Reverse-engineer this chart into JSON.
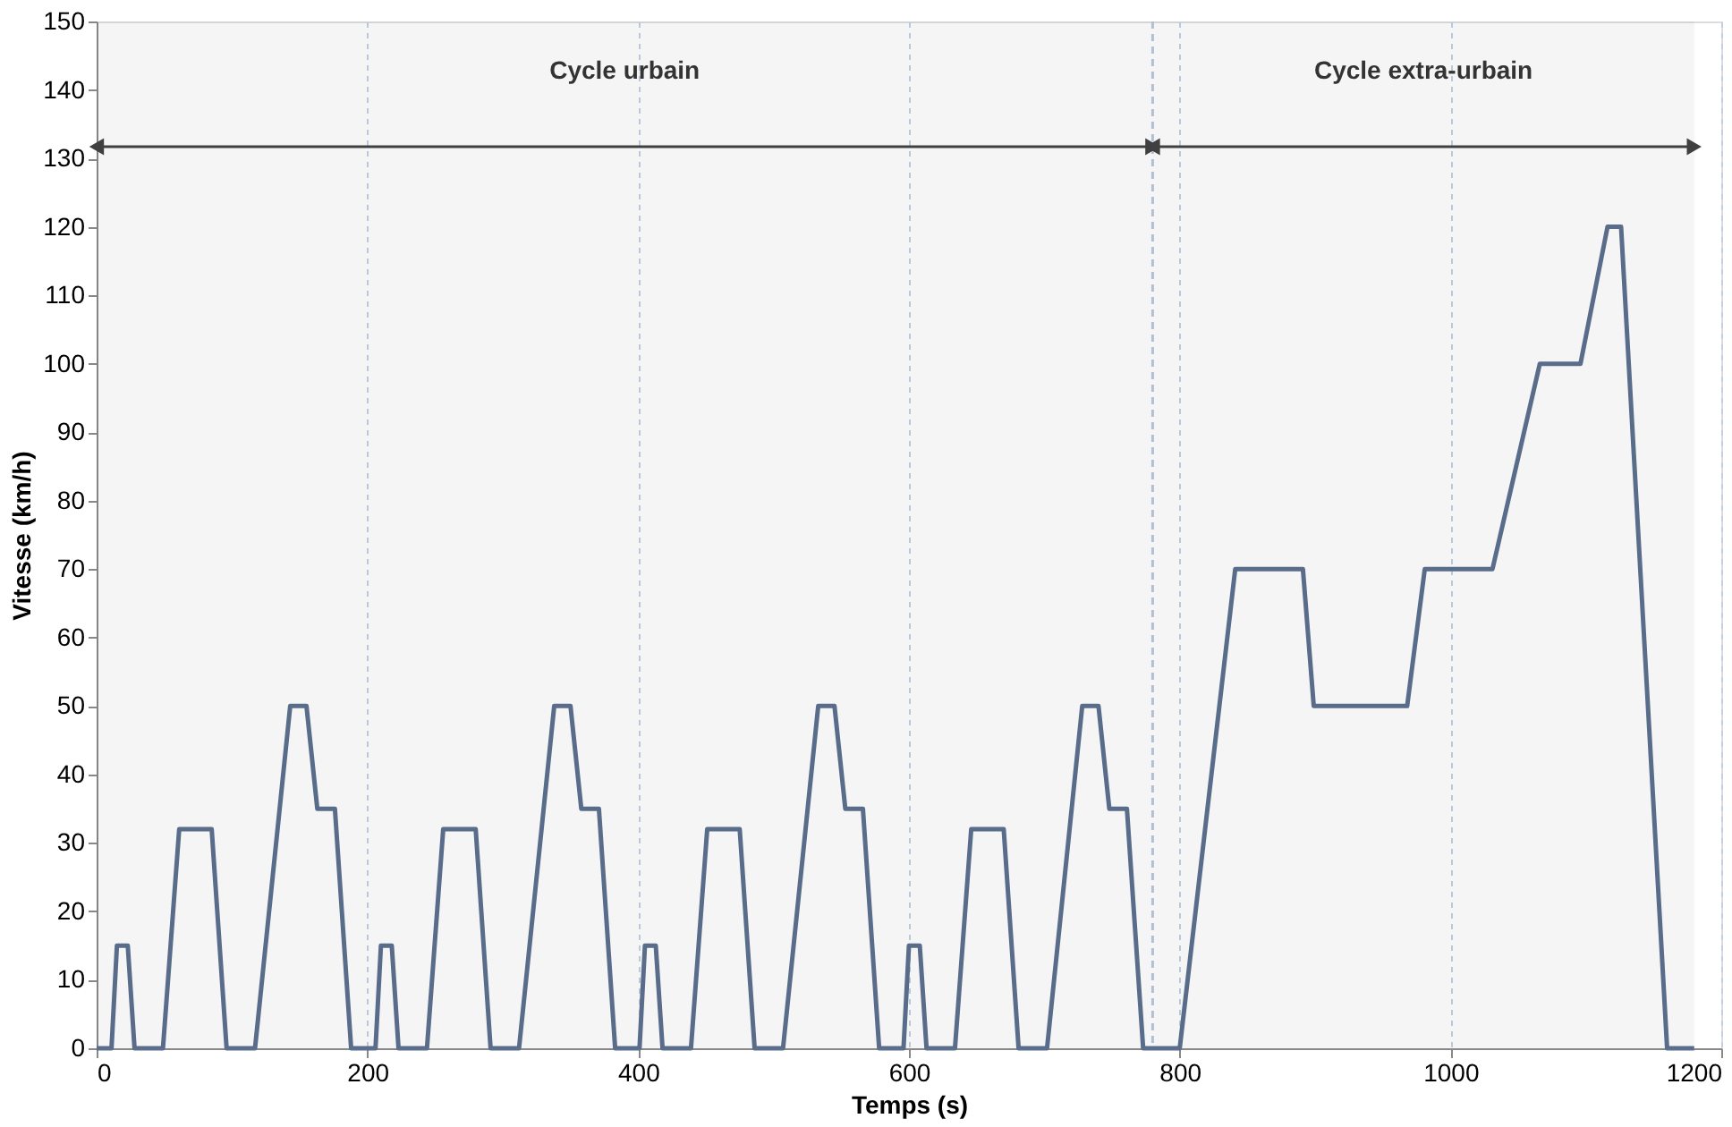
{
  "chart_data": {
    "type": "line",
    "xlabel": "Temps (s)",
    "ylabel": "Vitesse (km/h)",
    "x": [
      0,
      11,
      15,
      23,
      28,
      49,
      61,
      85,
      96,
      117,
      143,
      155,
      163,
      176,
      188,
      195,
      206,
      210,
      218,
      223,
      244,
      256,
      280,
      291,
      312,
      338,
      350,
      358,
      371,
      383,
      390,
      401,
      405,
      413,
      418,
      439,
      451,
      475,
      486,
      507,
      533,
      545,
      553,
      566,
      578,
      585,
      596,
      600,
      608,
      613,
      634,
      646,
      670,
      681,
      702,
      728,
      740,
      748,
      761,
      773,
      780,
      800,
      841,
      891,
      899,
      968,
      981,
      1031,
      1066,
      1096,
      1116,
      1126,
      1160,
      1180
    ],
    "series": [
      {
        "color": "#5b6f8e",
        "values": [
          0,
          0,
          15,
          15,
          0,
          0,
          32,
          32,
          0,
          0,
          50,
          50,
          35,
          35,
          0,
          0,
          0,
          15,
          15,
          0,
          0,
          32,
          32,
          0,
          0,
          50,
          50,
          35,
          35,
          0,
          0,
          0,
          15,
          15,
          0,
          0,
          32,
          32,
          0,
          0,
          50,
          50,
          35,
          35,
          0,
          0,
          0,
          15,
          15,
          0,
          0,
          32,
          32,
          0,
          0,
          50,
          50,
          35,
          35,
          0,
          0,
          0,
          70,
          70,
          50,
          50,
          70,
          70,
          100,
          100,
          120,
          120,
          0,
          0
        ]
      }
    ],
    "xlim": [
      0,
      1200
    ],
    "xticks": [
      0,
      200,
      400,
      600,
      800,
      1000,
      1200
    ],
    "ylim": [
      0,
      150
    ],
    "yticks": [
      0,
      10,
      20,
      30,
      40,
      50,
      60,
      70,
      80,
      90,
      100,
      110,
      120,
      130,
      140,
      150
    ],
    "grid": "x",
    "legend": false,
    "marker": "none",
    "line_style": "solid",
    "bands": [
      {
        "axis": "x",
        "from": 0,
        "to": 780,
        "label": "Cycle urbain",
        "color": "#404040"
      },
      {
        "axis": "x",
        "from": 780,
        "to": 1180,
        "label": "Cycle extra-urbain",
        "color": "#404040"
      }
    ],
    "ref_lines": [
      {
        "axis": "x",
        "value": 780,
        "color": "#b8c8dc",
        "line_style": "dashed"
      }
    ]
  }
}
